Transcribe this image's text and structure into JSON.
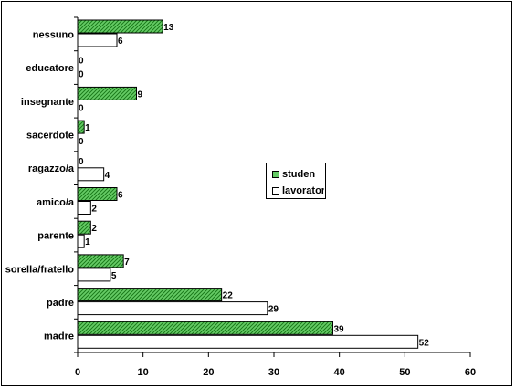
{
  "chart_data": {
    "type": "bar",
    "orientation": "horizontal",
    "categories": [
      "madre",
      "padre",
      "sorella/fratello",
      "parente",
      "amico/a",
      "ragazzo/a",
      "sacerdote",
      "insegnante",
      "educatore",
      "nessuno"
    ],
    "series": [
      {
        "name": "studen",
        "values": [
          39,
          22,
          7,
          2,
          6,
          0,
          1,
          9,
          0,
          13
        ],
        "color": "#66cc66",
        "pattern": "hatched"
      },
      {
        "name": "lavorator",
        "values": [
          52,
          29,
          5,
          1,
          2,
          4,
          0,
          0,
          0,
          6
        ],
        "color": "#ffffff",
        "pattern": "solid"
      }
    ],
    "xlim": [
      0,
      60
    ],
    "xticks": [
      0,
      10,
      20,
      30,
      40,
      50,
      60
    ],
    "grid": false,
    "legend": "right-middle"
  }
}
